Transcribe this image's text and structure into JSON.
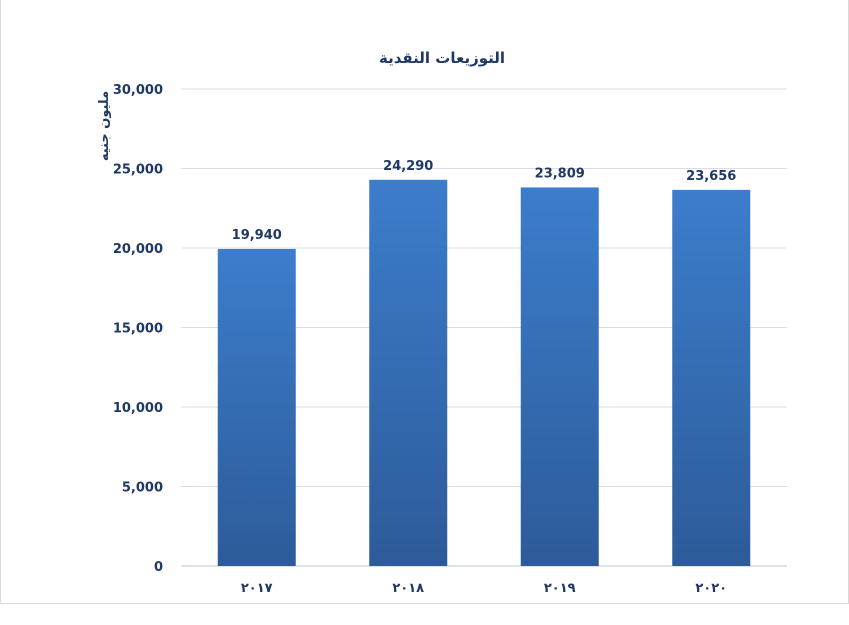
{
  "chart_data": {
    "type": "bar",
    "title": "التوزيعات النقدية",
    "ylabel": "مليون جنيه",
    "xlabel": "",
    "categories": [
      "٢٠١٧",
      "٢٠١٨",
      "٢٠١٩",
      "٢٠٢٠"
    ],
    "values": [
      19940,
      24290,
      23809,
      23656
    ],
    "data_labels": [
      "19,940",
      "24,290",
      "23,809",
      "23,656"
    ],
    "ylim": [
      0,
      30000
    ],
    "yticks": [
      0,
      5000,
      10000,
      15000,
      20000,
      25000,
      30000
    ],
    "ytick_labels": [
      "0",
      "5,000",
      "10,000",
      "15,000",
      "20,000",
      "25,000",
      "30,000"
    ],
    "grid": true,
    "legend": "none",
    "colors": {
      "bar_top": "#3c7dcc",
      "bar_bottom": "#2d5b99",
      "text": "#1f3864",
      "grid": "#d9dde6"
    }
  }
}
